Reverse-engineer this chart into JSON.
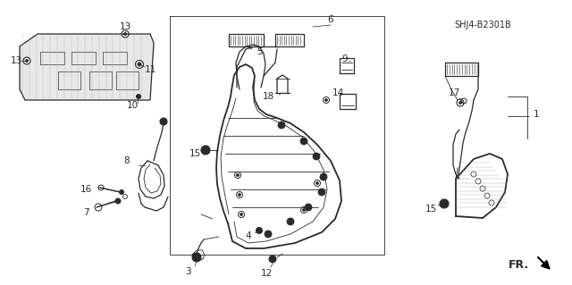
{
  "bg_color": "#ffffff",
  "line_color": "#2a2a2a",
  "diagram_code": "SHJ4-B2301B",
  "fr_label": "FR.",
  "font_size_labels": 7.5,
  "font_size_code": 7,
  "font_size_fr": 9,
  "arrow_color": "#000000",
  "gray_fill": "#c8c8c8",
  "light_gray": "#e0e0e0"
}
